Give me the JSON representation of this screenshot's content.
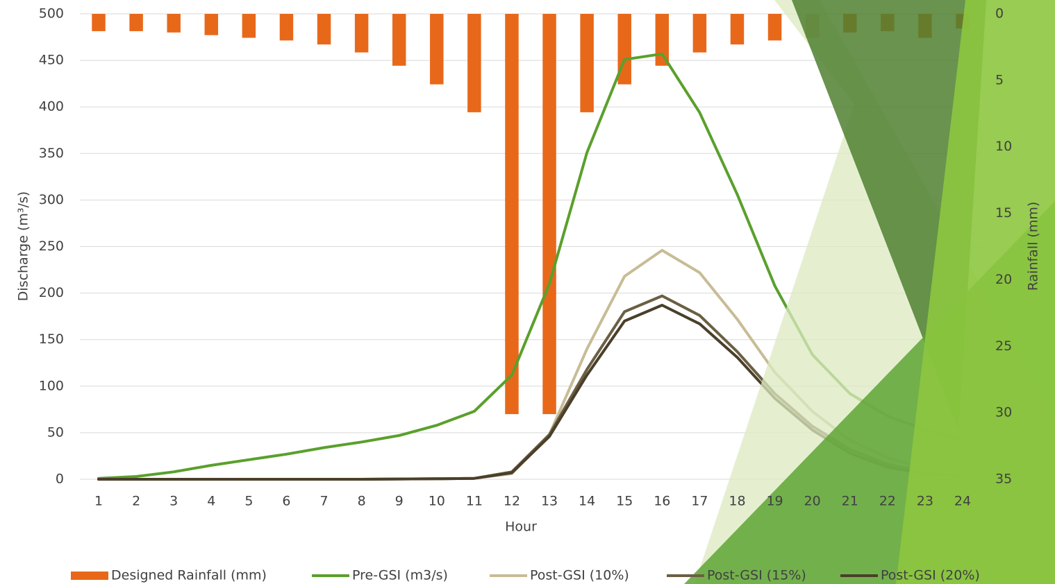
{
  "chart_data": {
    "type": "combo",
    "x_label": "Hour",
    "y_label": "Discharge (m³/s)",
    "y2_label": "Rainfall (mm)",
    "categories": [
      "1",
      "2",
      "3",
      "4",
      "5",
      "6",
      "7",
      "8",
      "9",
      "10",
      "11",
      "12",
      "13",
      "14",
      "15",
      "16",
      "17",
      "18",
      "19",
      "20",
      "21",
      "22",
      "23",
      "24"
    ],
    "ylim": [
      0,
      500
    ],
    "yticks": [
      0,
      50,
      100,
      150,
      200,
      250,
      300,
      350,
      400,
      450,
      500
    ],
    "y2lim": [
      0,
      35
    ],
    "y2ticks": [
      0,
      5,
      10,
      15,
      20,
      25,
      30,
      35
    ],
    "y2_inverted": true,
    "grid": true,
    "legend": "bottom",
    "series": [
      {
        "name": "Designed Rainfall (mm)",
        "type": "bar",
        "axis": "y2",
        "color": "#e8681a",
        "values": [
          1.3,
          1.3,
          1.4,
          1.6,
          1.8,
          2.0,
          2.3,
          2.9,
          3.9,
          5.3,
          7.4,
          30.1,
          30.1,
          7.4,
          5.3,
          3.9,
          2.9,
          2.3,
          2.0,
          1.8,
          1.4,
          1.3,
          1.8,
          1.1
        ]
      },
      {
        "name": "Pre-GSI (m3/s)",
        "type": "line",
        "color": "#5aa02c",
        "values": [
          1,
          3,
          8,
          15,
          21,
          27,
          34,
          40,
          47,
          58,
          73,
          112,
          210,
          351,
          451,
          457,
          394,
          306,
          208,
          134,
          92,
          68,
          53,
          43
        ]
      },
      {
        "name": "Post-GSI (10%)",
        "type": "line",
        "color": "#c8bc96",
        "values": [
          0,
          0,
          0,
          0,
          0,
          0,
          0,
          0,
          0.3,
          0.5,
          1,
          6,
          48,
          140,
          218,
          246,
          222,
          172,
          115,
          73,
          42,
          23,
          12,
          8
        ]
      },
      {
        "name": "Post-GSI (15%)",
        "type": "line",
        "color": "#6b5f43",
        "values": [
          0,
          0,
          0,
          0,
          0,
          0,
          0,
          0,
          0.3,
          0.5,
          1,
          8,
          48,
          118,
          180,
          197,
          176,
          137,
          92,
          57,
          32,
          16,
          8,
          4
        ]
      },
      {
        "name": "Post-GSI (20%)",
        "type": "line",
        "color": "#4a3f2a",
        "values": [
          0,
          0,
          0,
          0,
          0,
          0,
          0,
          0,
          0.3,
          0.5,
          1,
          7,
          46,
          112,
          170,
          187,
          167,
          131,
          87,
          53,
          28,
          13,
          6,
          3
        ]
      }
    ]
  }
}
